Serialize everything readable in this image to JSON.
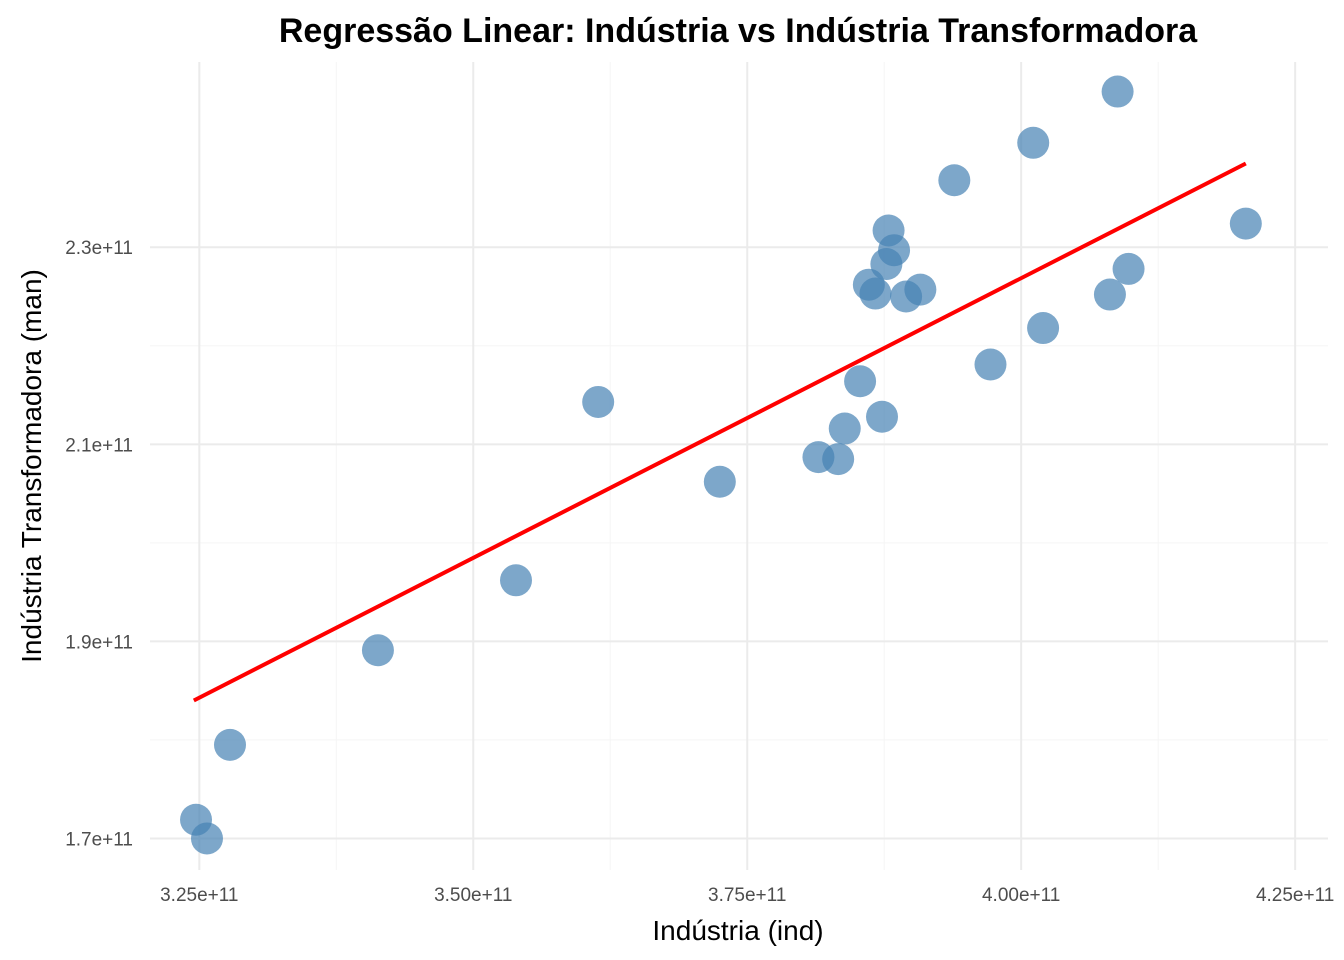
{
  "chart_data": {
    "type": "scatter",
    "title": "Regressão Linear: Indústria vs Indústria Transformadora",
    "xlabel": "Indústria (ind)",
    "ylabel": "Indústria Transformadora (man)",
    "xlim": [
      320500000000.0,
      428000000000.0
    ],
    "ylim": [
      166800000000.0,
      248800000000.0
    ],
    "x_ticks": [
      325000000000.0,
      350000000000.0,
      375000000000.0,
      400000000000.0,
      425000000000.0
    ],
    "x_tick_labels": [
      "3.25e+11",
      "3.50e+11",
      "3.75e+11",
      "4.00e+11",
      "4.25e+11"
    ],
    "y_ticks": [
      170000000000.0,
      190000000000.0,
      210000000000.0,
      230000000000.0
    ],
    "y_tick_labels": [
      "1.7e+11",
      "1.9e+11",
      "2.1e+11",
      "2.3e+11"
    ],
    "grid": true,
    "points_color": "#4682B4",
    "line_color": "#FF0000",
    "series": [
      {
        "type": "scatter",
        "points": [
          [
            324700000000.0,
            171900000000.0
          ],
          [
            325700000000.0,
            170000000000.0
          ],
          [
            327800000000.0,
            179500000000.0
          ],
          [
            341300000000.0,
            189100000000.0
          ],
          [
            353900000000.0,
            196200000000.0
          ],
          [
            361400000000.0,
            214300000000.0
          ],
          [
            372500000000.0,
            206200000000.0
          ],
          [
            381500000000.0,
            208700000000.0
          ],
          [
            383300000000.0,
            208500000000.0
          ],
          [
            383900000000.0,
            211600000000.0
          ],
          [
            385300000000.0,
            216400000000.0
          ],
          [
            386100000000.0,
            226200000000.0
          ],
          [
            386700000000.0,
            225300000000.0
          ],
          [
            387300000000.0,
            212800000000.0
          ],
          [
            387700000000.0,
            228300000000.0
          ],
          [
            387900000000.0,
            231700000000.0
          ],
          [
            388400000000.0,
            229700000000.0
          ],
          [
            389500000000.0,
            225000000000.0
          ],
          [
            390800000000.0,
            225700000000.0
          ],
          [
            393900000000.0,
            236800000000.0
          ],
          [
            397200000000.0,
            218100000000.0
          ],
          [
            401100000000.0,
            240600000000.0
          ],
          [
            402000000000.0,
            221800000000.0
          ],
          [
            408100000000.0,
            225200000000.0
          ],
          [
            408800000000.0,
            245800000000.0
          ],
          [
            409800000000.0,
            227800000000.0
          ],
          [
            420500000000.0,
            232400000000.0
          ]
        ]
      },
      {
        "type": "line",
        "points": [
          [
            324500000000.0,
            184000000000.0
          ],
          [
            420500000000.0,
            238500000000.0
          ]
        ]
      }
    ]
  }
}
